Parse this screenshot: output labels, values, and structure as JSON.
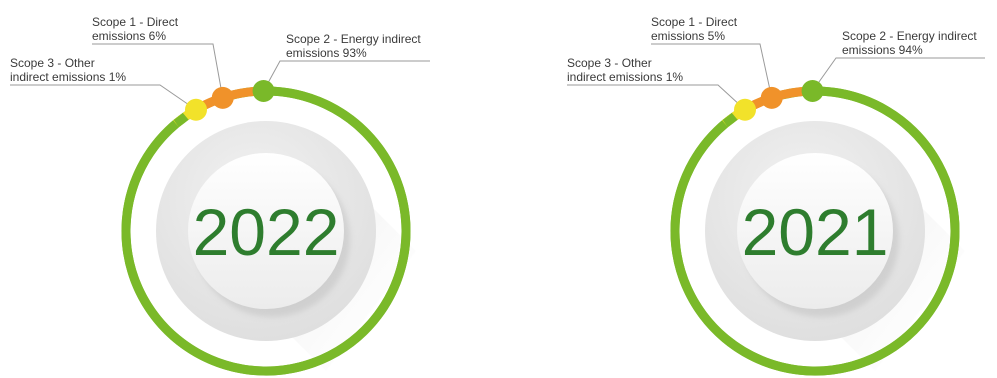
{
  "colors": {
    "scope1": "#f0922a",
    "scope2": "#7ab929",
    "scope3": "#f2e22a",
    "year_text": "#2e7d2e",
    "leader": "#9a9a9a"
  },
  "chart_data": [
    {
      "type": "pie",
      "title": "2022",
      "slices": [
        {
          "key": "scope1",
          "label_lines": [
            "Scope 1 - Direct",
            "emissions 6%"
          ],
          "value": 6
        },
        {
          "key": "scope2",
          "label_lines": [
            "Scope 2 - Energy indirect",
            "emissions 93%"
          ],
          "value": 93
        },
        {
          "key": "scope3",
          "label_lines": [
            "Scope 3 - Other",
            "indirect emissions 1%"
          ],
          "value": 1
        }
      ]
    },
    {
      "type": "pie",
      "title": "2021",
      "slices": [
        {
          "key": "scope1",
          "label_lines": [
            "Scope 1 - Direct",
            "emissions 5%"
          ],
          "value": 5
        },
        {
          "key": "scope2",
          "label_lines": [
            "Scope 2 - Energy indirect",
            "emissions 94%"
          ],
          "value": 94
        },
        {
          "key": "scope3",
          "label_lines": [
            "Scope 3 - Other",
            "indirect emissions 1%"
          ],
          "value": 1
        }
      ]
    }
  ]
}
